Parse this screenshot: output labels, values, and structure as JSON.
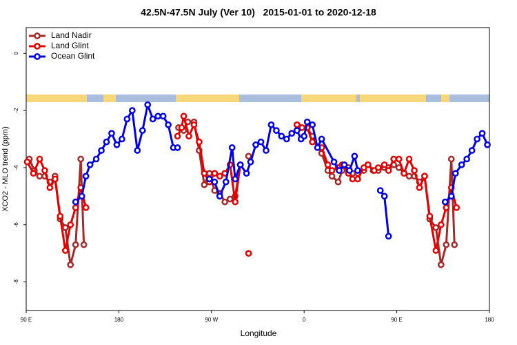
{
  "chart_data": {
    "type": "line",
    "title": "42.5N-47.5N July (Ver 10)   2015-01-01 to 2020-12-18",
    "xlabel": "Longitude",
    "ylabel": "XCO2 - MLO trend (ppm)",
    "xlim": [
      90,
      540
    ],
    "xticks": [
      {
        "value": 90,
        "label": "90 E"
      },
      180,
      {
        "value": 270,
        "label": "90 W"
      },
      {
        "value": 360,
        "label": "0"
      },
      {
        "value": 450,
        "label": "90 E"
      },
      {
        "value": 540,
        "label": "180"
      }
    ],
    "ylim": [
      -9,
      0.9
    ],
    "yticks": [
      -8,
      -6,
      -4,
      -2,
      0
    ],
    "legend": "top-left",
    "series": [
      {
        "name": "Land Nadir",
        "color": "#a52a2a",
        "x": [
          93,
          98,
          103,
          108,
          113,
          118,
          123,
          128,
          133,
          138,
          143,
          146,
          null,
          238,
          243,
          247,
          253,
          258,
          263,
          268,
          273,
          278,
          283,
          288,
          293,
          298,
          null,
          306,
          null,
          357,
          363,
          368,
          377,
          383,
          387,
          393,
          397,
          403,
          407,
          412,
          418,
          422,
          427,
          432,
          438,
          442,
          447,
          452,
          457,
          462,
          467,
          472,
          477,
          482,
          488,
          493,
          498,
          503,
          506
        ],
        "values": [
          -3.7,
          -4.1,
          -4.3,
          -4.3,
          -4.5,
          -4.3,
          -5.8,
          -6.1,
          -7.4,
          -6.7,
          -3.7,
          -6.7,
          null,
          -2.6,
          -2.7,
          -2.4,
          -2.4,
          -3.4,
          -4.6,
          -4.2,
          -4.8,
          -4.9,
          -5.2,
          -5.1,
          -5.0,
          -3.9,
          null,
          -3.6,
          null,
          -2.6,
          -2.6,
          -2.9,
          -3.5,
          -4.1,
          -4.3,
          -4.5,
          -4.1,
          -4.0,
          -4.2,
          -4.2,
          -4.1,
          -3.9,
          -4.1,
          -4.1,
          -4.0,
          -4.0,
          -3.9,
          -4.0,
          -4.2,
          -4.3,
          -4.3,
          -4.5,
          -4.3,
          -5.8,
          -6.1,
          -7.4,
          -6.7,
          -3.7,
          -6.7
        ]
      },
      {
        "name": "Land Glint",
        "color": "#e60000",
        "x": [
          91,
          97,
          103,
          108,
          113,
          118,
          123,
          128,
          133,
          138,
          143,
          148,
          null,
          237,
          241,
          243,
          248,
          253,
          258,
          263,
          268,
          273,
          278,
          283,
          288,
          293,
          298,
          null,
          306,
          null,
          353,
          358,
          363,
          368,
          377,
          383,
          387,
          393,
          397,
          403,
          407,
          412,
          418,
          422,
          428,
          432,
          438,
          442,
          447,
          452,
          457,
          462,
          467,
          472,
          477,
          482,
          488,
          493,
          498,
          503,
          508
        ],
        "values": [
          -3.8,
          -4.2,
          -3.7,
          -4.1,
          -4.7,
          -4.4,
          -5.7,
          -6.9,
          -6.0,
          -5.4,
          -4.7,
          -5.4,
          null,
          -2.9,
          -2.6,
          -2.2,
          -2.9,
          -2.5,
          -3.1,
          -4.2,
          -4.5,
          -4.2,
          -4.3,
          -4.2,
          -3.9,
          -5.2,
          -3.9,
          null,
          -7.0,
          null,
          -2.5,
          -2.6,
          -2.6,
          -3.1,
          -3.3,
          -3.9,
          -4.1,
          -4.0,
          -3.9,
          -4.2,
          -4.4,
          -4.4,
          -4.0,
          -3.9,
          -4.1,
          -4.0,
          -3.9,
          -4.1,
          -3.7,
          -3.7,
          -4.2,
          -3.7,
          -4.1,
          -4.7,
          -4.3,
          -5.7,
          -6.9,
          -6.0,
          -5.4,
          -4.7,
          -5.4
        ]
      },
      {
        "name": "Ocean Glint",
        "color": "#0000e6",
        "x": [
          138,
          144,
          148,
          152,
          158,
          163,
          168,
          173,
          178,
          183,
          188,
          193,
          198,
          203,
          208,
          213,
          218,
          223,
          228,
          233,
          237,
          null,
          268,
          273,
          278,
          284,
          290,
          293,
          298,
          304,
          308,
          313,
          318,
          323,
          328,
          333,
          338,
          343,
          348,
          353,
          357,
          360,
          363,
          368,
          373,
          377,
          389,
          394,
          399,
          404,
          409,
          412,
          null,
          434,
          438,
          442,
          null,
          497,
          503,
          507,
          513,
          518,
          523,
          528,
          533,
          538
        ],
        "values": [
          -5.2,
          -5.0,
          -4.3,
          -3.9,
          -3.7,
          -3.4,
          -3.1,
          -2.8,
          -3.2,
          -3.0,
          -2.3,
          -2.0,
          -3.4,
          -2.7,
          -1.8,
          -2.3,
          -2.2,
          -2.2,
          -2.5,
          -3.3,
          -3.3,
          null,
          -4.4,
          -4.5,
          -5.0,
          -4.5,
          -3.3,
          -4.4,
          -3.9,
          -4.2,
          -3.8,
          -3.2,
          -3.1,
          -3.4,
          -2.5,
          -2.7,
          -2.9,
          -3.0,
          -2.8,
          -2.7,
          -3.0,
          -2.9,
          -2.4,
          -2.5,
          -3.3,
          -3.0,
          -3.8,
          -4.1,
          -3.9,
          -4.1,
          -3.6,
          -4.1,
          null,
          -4.8,
          -5.0,
          -6.4,
          null,
          -5.2,
          -5.0,
          -4.2,
          -3.9,
          -3.7,
          -3.4,
          -3.0,
          -2.8,
          -3.2
        ]
      }
    ]
  }
}
